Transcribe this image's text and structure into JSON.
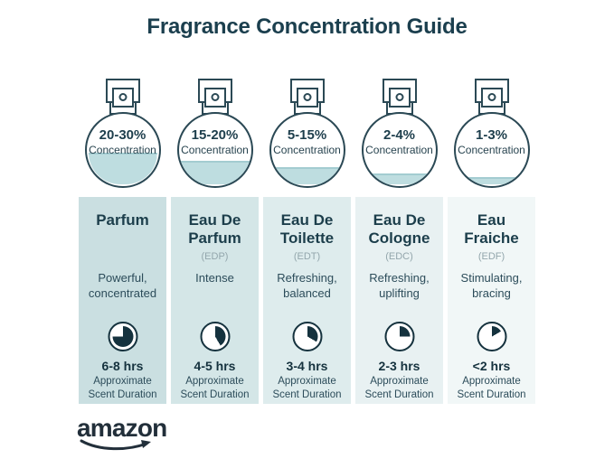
{
  "title": "Fragrance Concentration Guide",
  "colors": {
    "title_text": "#1b3f4e",
    "outline": "#2b4955",
    "liquid": "#bedde0",
    "liquid_surface": "#a3ccd1",
    "pie_dark": "#15323e",
    "abbr_gray": "#93a6ac",
    "logo_dark": "#222f3a"
  },
  "bottles": [
    {
      "concentration": "20-30%",
      "label": "Concentration",
      "fill_pct": 44
    },
    {
      "concentration": "15-20%",
      "label": "Concentration",
      "fill_pct": 32
    },
    {
      "concentration": "5-15%",
      "label": "Concentration",
      "fill_pct": 24
    },
    {
      "concentration": "2-4%",
      "label": "Concentration",
      "fill_pct": 15
    },
    {
      "concentration": "1-3%",
      "label": "Concentration",
      "fill_pct": 10
    }
  ],
  "columns": [
    {
      "name": "Parfum",
      "abbr": "",
      "description": "Powerful, concentrated",
      "duration": "6-8 hrs",
      "approx": "Approximate Scent Duration",
      "pie_deg": 270,
      "bg": "#cadfe1"
    },
    {
      "name": "Eau De Parfum",
      "abbr": "(EDP)",
      "description": "Intense",
      "duration": "4-5 hrs",
      "approx": "Approximate Scent Duration",
      "pie_deg": 150,
      "bg": "#d4e6e7"
    },
    {
      "name": "Eau De Toilette",
      "abbr": "(EDT)",
      "description": "Refreshing, balanced",
      "duration": "3-4 hrs",
      "approx": "Approximate Scent Duration",
      "pie_deg": 120,
      "bg": "#deeced"
    },
    {
      "name": "Eau De Cologne",
      "abbr": "(EDC)",
      "description": "Refreshing, uplifting",
      "duration": "2-3 hrs",
      "approx": "Approximate Scent Duration",
      "pie_deg": 90,
      "bg": "#e8f1f2"
    },
    {
      "name": "Eau Fraiche",
      "abbr": "(EDF)",
      "description": "Stimulating, bracing",
      "duration": "<2 hrs",
      "approx": "Approximate Scent Duration",
      "pie_deg": 60,
      "bg": "#f1f7f7"
    }
  ],
  "footer": {
    "logo": "amazon"
  }
}
